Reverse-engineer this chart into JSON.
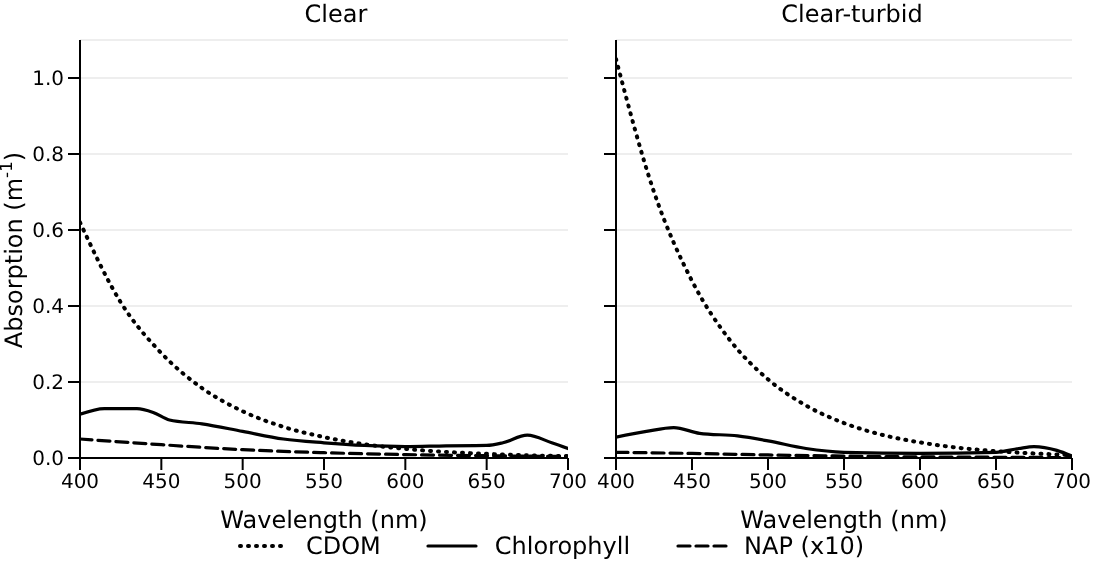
{
  "chart_data": [
    {
      "type": "line",
      "title": "Clear",
      "xlabel": "Wavelength (nm)",
      "ylabel": "Absorption (m$^{-1}$)",
      "xlim": [
        400,
        700
      ],
      "xticks": [
        400,
        450,
        500,
        550,
        600,
        650,
        700
      ],
      "ylim": [
        0,
        1.1
      ],
      "yticks": [
        {
          "value": 0,
          "label": "0.0"
        },
        0.2,
        0.4,
        0.6,
        0.8,
        {
          "value": 1,
          "label": "1.0"
        }
      ],
      "grid": "y",
      "legend": "bottom",
      "marker": "none",
      "series": [
        {
          "name": "CDOM",
          "color": "#000000",
          "line_style": "dotted",
          "x": [
            400,
            425,
            450,
            475,
            500,
            525,
            550,
            575,
            600,
            625,
            650,
            675,
            700
          ],
          "values": [
            0.62,
            0.41,
            0.276,
            0.184,
            0.123,
            0.082,
            0.055,
            0.036,
            0.024,
            0.016,
            0.011,
            0.007,
            0.005
          ]
        },
        {
          "name": "Chlorophyll",
          "color": "#000000",
          "line_style": "solid",
          "x": [
            400,
            415,
            435,
            445,
            455,
            475,
            500,
            525,
            550,
            575,
            600,
            625,
            650,
            660,
            675,
            690,
            700
          ],
          "values": [
            0.115,
            0.13,
            0.13,
            0.12,
            0.1,
            0.09,
            0.07,
            0.05,
            0.04,
            0.033,
            0.03,
            0.032,
            0.033,
            0.04,
            0.06,
            0.04,
            0.025
          ]
        },
        {
          "name": "NAP (x10)",
          "color": "#000000",
          "line_style": "dashed",
          "x": [
            400,
            450,
            500,
            550,
            600,
            650,
            700
          ],
          "values": [
            0.05,
            0.035,
            0.022,
            0.014,
            0.009,
            0.006,
            0.004
          ]
        }
      ]
    },
    {
      "type": "line",
      "title": "Clear-turbid",
      "xlabel": "Wavelength (nm)",
      "xlim": [
        400,
        700
      ],
      "xticks": [
        400,
        450,
        500,
        550,
        600,
        650,
        700
      ],
      "ylim": [
        0,
        1.1
      ],
      "yticks": [
        0,
        0.2,
        0.4,
        0.6,
        0.8,
        1
      ],
      "grid": "y",
      "tick_labels": "x",
      "marker": "none",
      "series": [
        {
          "color": "#000000",
          "line_style": "dotted",
          "x": [
            400,
            425,
            450,
            475,
            500,
            525,
            550,
            575,
            600,
            625,
            650,
            675,
            700
          ],
          "values": [
            1.05,
            0.7,
            0.466,
            0.31,
            0.207,
            0.138,
            0.092,
            0.061,
            0.041,
            0.027,
            0.018,
            0.012,
            0.008
          ]
        },
        {
          "color": "#000000",
          "line_style": "solid",
          "x": [
            400,
            420,
            438,
            455,
            480,
            500,
            525,
            550,
            600,
            650,
            665,
            675,
            690,
            700
          ],
          "values": [
            0.055,
            0.07,
            0.08,
            0.065,
            0.058,
            0.045,
            0.025,
            0.015,
            0.012,
            0.015,
            0.025,
            0.03,
            0.02,
            0.005
          ]
        },
        {
          "color": "#000000",
          "line_style": "dashed",
          "x": [
            400,
            450,
            500,
            550,
            600,
            650,
            700
          ],
          "values": [
            0.015,
            0.012,
            0.008,
            0.005,
            0.003,
            0.002,
            0.001
          ]
        }
      ]
    }
  ]
}
